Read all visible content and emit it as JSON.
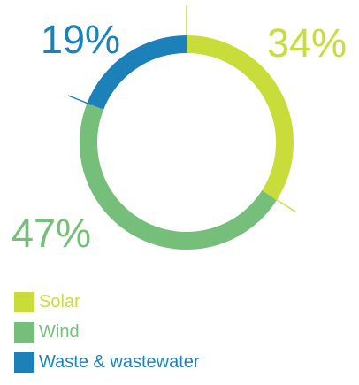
{
  "chart_data": {
    "type": "pie",
    "variant": "donut",
    "categories": [
      "Solar",
      "Wind",
      "Waste & wastewater"
    ],
    "values": [
      34,
      47,
      19
    ],
    "labels": [
      "34%",
      "47%",
      "19%"
    ],
    "colors": {
      "Solar": "#c9dd3a",
      "Wind": "#76bf7b",
      "Waste & wastewater": "#1b81b8"
    },
    "title": "",
    "legend_position": "bottom-left"
  },
  "legend": {
    "items": [
      {
        "label": "Solar",
        "color": "#c9dd3a"
      },
      {
        "label": "Wind",
        "color": "#76bf7b"
      },
      {
        "label": "Waste & wastewater",
        "color": "#1b81b8"
      }
    ]
  }
}
